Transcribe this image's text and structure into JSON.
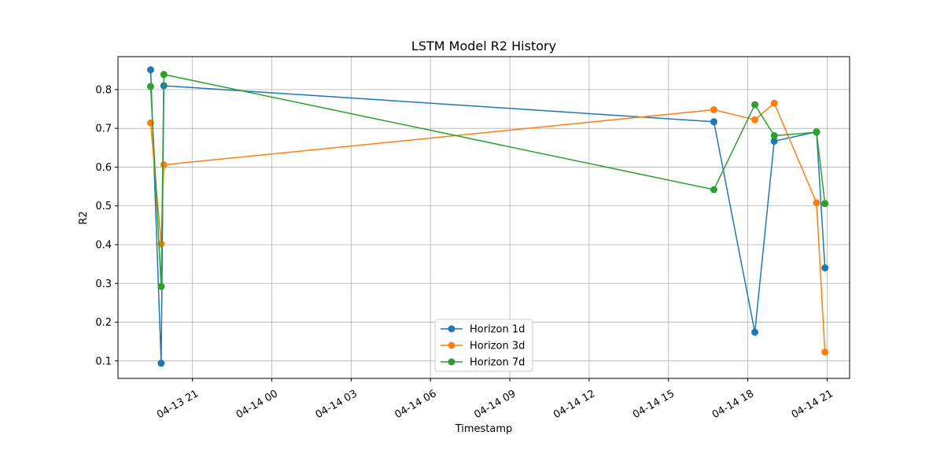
{
  "chart_data": {
    "type": "line",
    "title": "LSTM Model R2 History",
    "xlabel": "Timestamp",
    "ylabel": "R2",
    "x_axis_kind": "datetime",
    "xlim": [
      "2025-04-13 18:11",
      "2025-04-14 21:51"
    ],
    "ylim": [
      0.055,
      0.885
    ],
    "grid": true,
    "legend_position": "lower center",
    "x_ticks": [
      {
        "value": "2025-04-13 21:00",
        "label": "04-13 21"
      },
      {
        "value": "2025-04-14 00:00",
        "label": "04-14 00"
      },
      {
        "value": "2025-04-14 03:00",
        "label": "04-14 03"
      },
      {
        "value": "2025-04-14 06:00",
        "label": "04-14 06"
      },
      {
        "value": "2025-04-14 09:00",
        "label": "04-14 09"
      },
      {
        "value": "2025-04-14 12:00",
        "label": "04-14 12"
      },
      {
        "value": "2025-04-14 15:00",
        "label": "04-14 15"
      },
      {
        "value": "2025-04-14 18:00",
        "label": "04-14 18"
      },
      {
        "value": "2025-04-14 21:00",
        "label": "04-14 21"
      }
    ],
    "y_ticks": [
      {
        "value": 0.1,
        "label": "0.1"
      },
      {
        "value": 0.2,
        "label": "0.2"
      },
      {
        "value": 0.3,
        "label": "0.3"
      },
      {
        "value": 0.4,
        "label": "0.4"
      },
      {
        "value": 0.5,
        "label": "0.5"
      },
      {
        "value": 0.6,
        "label": "0.6"
      },
      {
        "value": 0.7,
        "label": "0.7"
      },
      {
        "value": 0.8,
        "label": "0.8"
      }
    ],
    "series": [
      {
        "name": "Horizon 1d",
        "color": "#1f77b4",
        "marker": "circle",
        "points": [
          {
            "x": "2025-04-13 19:25",
            "y": 0.851
          },
          {
            "x": "2025-04-13 19:49",
            "y": 0.094
          },
          {
            "x": "2025-04-13 19:55",
            "y": 0.81
          },
          {
            "x": "2025-04-14 16:43",
            "y": 0.717
          },
          {
            "x": "2025-04-14 18:16",
            "y": 0.174
          },
          {
            "x": "2025-04-14 19:00",
            "y": 0.667
          },
          {
            "x": "2025-04-14 20:36",
            "y": 0.691
          },
          {
            "x": "2025-04-14 20:55",
            "y": 0.34
          }
        ]
      },
      {
        "name": "Horizon 3d",
        "color": "#ff7f0e",
        "marker": "circle",
        "points": [
          {
            "x": "2025-04-13 19:25",
            "y": 0.714
          },
          {
            "x": "2025-04-13 19:49",
            "y": 0.402
          },
          {
            "x": "2025-04-13 19:55",
            "y": 0.606
          },
          {
            "x": "2025-04-14 16:43",
            "y": 0.748
          },
          {
            "x": "2025-04-14 18:16",
            "y": 0.722
          },
          {
            "x": "2025-04-14 19:00",
            "y": 0.765
          },
          {
            "x": "2025-04-14 20:36",
            "y": 0.508
          },
          {
            "x": "2025-04-14 20:55",
            "y": 0.123
          }
        ]
      },
      {
        "name": "Horizon 7d",
        "color": "#2ca02c",
        "marker": "circle",
        "points": [
          {
            "x": "2025-04-13 19:25",
            "y": 0.808
          },
          {
            "x": "2025-04-13 19:49",
            "y": 0.292
          },
          {
            "x": "2025-04-13 19:55",
            "y": 0.839
          },
          {
            "x": "2025-04-14 16:43",
            "y": 0.542
          },
          {
            "x": "2025-04-14 18:16",
            "y": 0.761
          },
          {
            "x": "2025-04-14 19:00",
            "y": 0.681
          },
          {
            "x": "2025-04-14 20:36",
            "y": 0.69
          },
          {
            "x": "2025-04-14 20:55",
            "y": 0.506
          }
        ]
      }
    ]
  }
}
